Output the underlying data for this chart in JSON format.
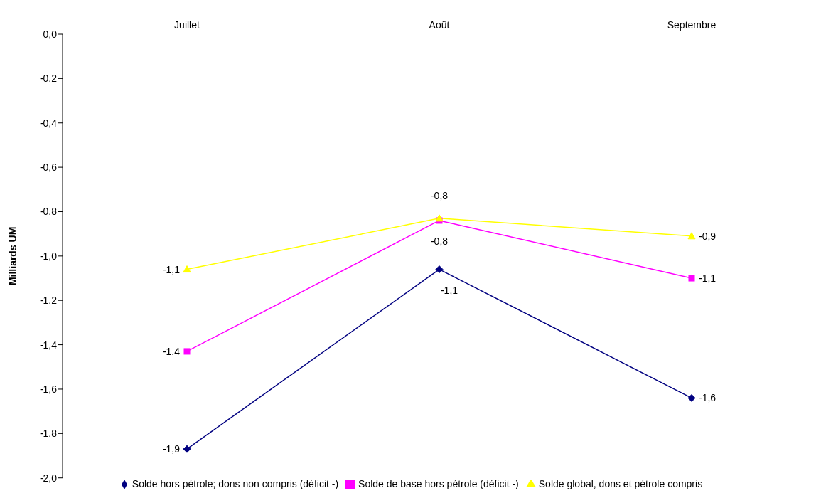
{
  "chart_data": {
    "type": "line",
    "ylabel": "Milliards UM",
    "categories": [
      "Juillet",
      "Août",
      "Septembre"
    ],
    "ylim": [
      -2.0,
      0.0
    ],
    "yticks": [
      {
        "value": 0,
        "label": "0,0"
      },
      {
        "value": -0.2,
        "label": "-0,2"
      },
      {
        "value": -0.4,
        "label": "-0,4"
      },
      {
        "value": -0.6,
        "label": "-0,6"
      },
      {
        "value": -0.8,
        "label": "-0,8"
      },
      {
        "value": -1.0,
        "label": "-1,0"
      },
      {
        "value": -1.2,
        "label": "-1,2"
      },
      {
        "value": -1.4,
        "label": "-1,4"
      },
      {
        "value": -1.6,
        "label": "-1,6"
      },
      {
        "value": -1.8,
        "label": "-1,8"
      },
      {
        "value": -2.0,
        "label": "-2,0"
      }
    ],
    "grid": false,
    "legend": "bottom",
    "line_style": "solid",
    "series": [
      {
        "name": "Solde hors pétrole; dons non compris (déficit -)",
        "color": "#000080",
        "marker": "diamond",
        "values": [
          -1.87,
          -1.06,
          -1.64
        ],
        "value_labels": [
          "-1,9",
          "-1,1",
          "-1,6"
        ]
      },
      {
        "name": "Solde de base hors pétrole (déficit -)",
        "color": "#ff00ff",
        "marker": "square",
        "values": [
          -1.43,
          -0.84,
          -1.1
        ],
        "value_labels": [
          "-1,4",
          "-0,8",
          "-1,1"
        ]
      },
      {
        "name": "Solde global, dons et pétrole compris",
        "color": "#ffff00",
        "marker": "triangle",
        "values": [
          -1.06,
          -0.83,
          -0.91
        ],
        "value_labels": [
          "-1,1",
          "-0,8",
          "-0,9"
        ]
      }
    ]
  }
}
